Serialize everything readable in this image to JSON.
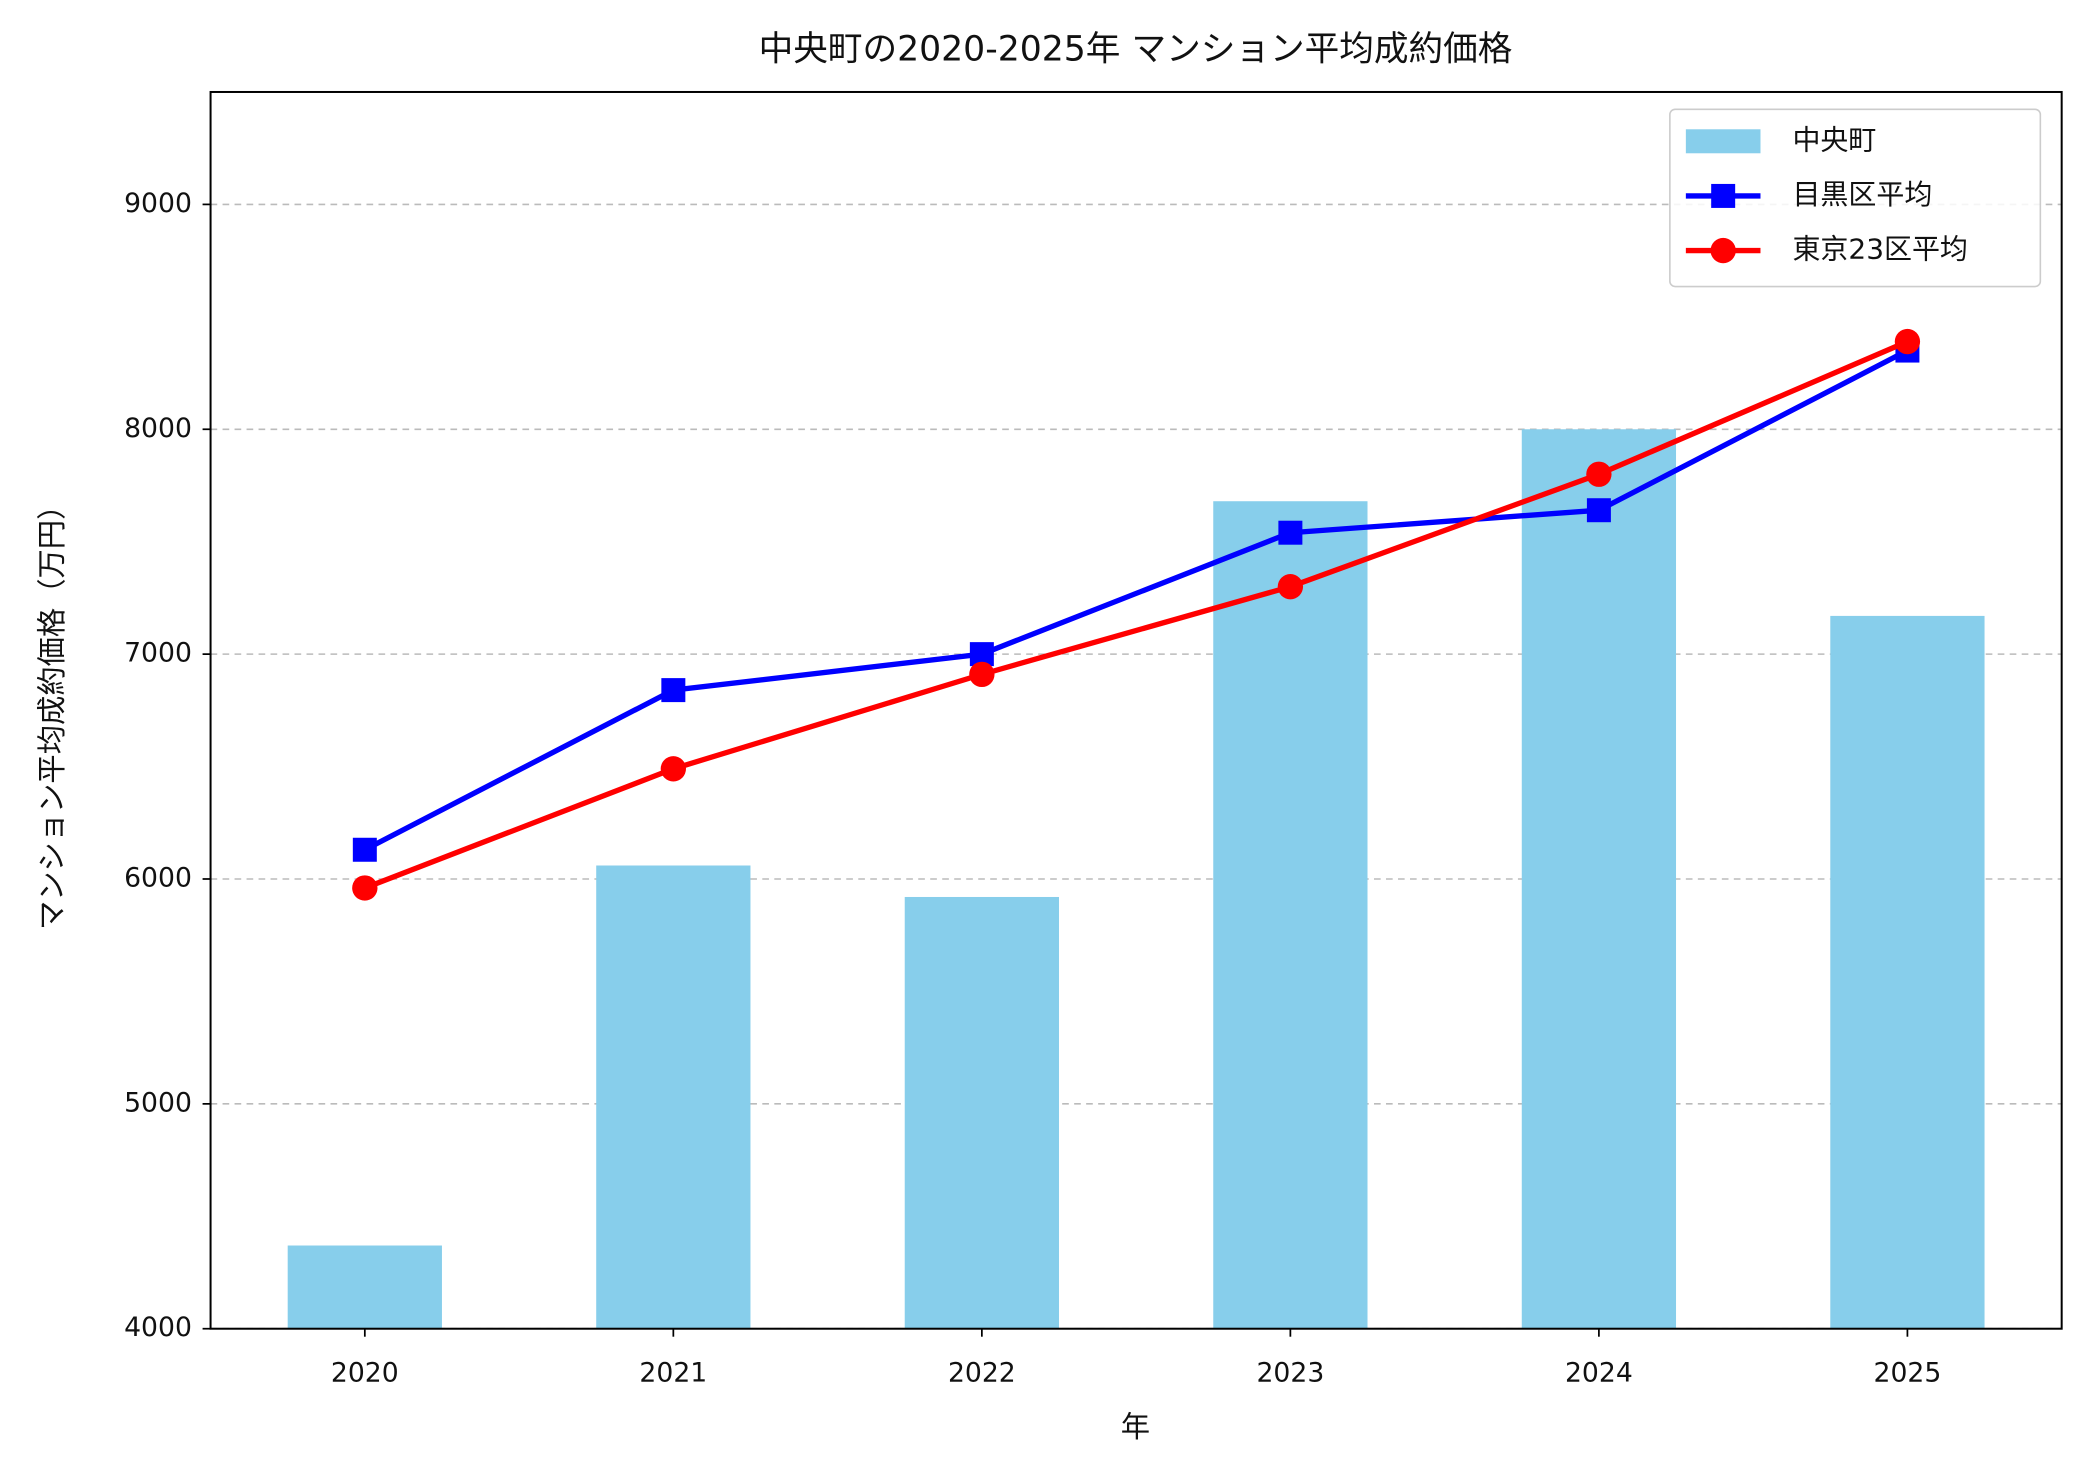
{
  "chart_data": {
    "type": "bar_line",
    "title": "中央町の2020-2025年 マンション平均成約価格",
    "xlabel": "年",
    "ylabel": "マンション平均成約価格（万円）",
    "categories": [
      "2020",
      "2021",
      "2022",
      "2023",
      "2024",
      "2025"
    ],
    "series": [
      {
        "name": "中央町",
        "type": "bar",
        "color": "#87ceeb",
        "values": [
          4370,
          6060,
          5920,
          7680,
          8000,
          7170
        ]
      },
      {
        "name": "目黒区平均",
        "type": "line",
        "marker": "square",
        "color": "#0000ff",
        "values": [
          6130,
          6840,
          7000,
          7540,
          7640,
          8350
        ]
      },
      {
        "name": "東京23区平均",
        "type": "line",
        "marker": "circle",
        "color": "#ff0000",
        "values": [
          5960,
          6490,
          6910,
          7300,
          7800,
          8390
        ]
      }
    ],
    "ylim": [
      4000,
      9500
    ],
    "yticks": [
      4000,
      5000,
      6000,
      7000,
      8000,
      9000
    ],
    "grid": true,
    "legend": "upper right"
  }
}
